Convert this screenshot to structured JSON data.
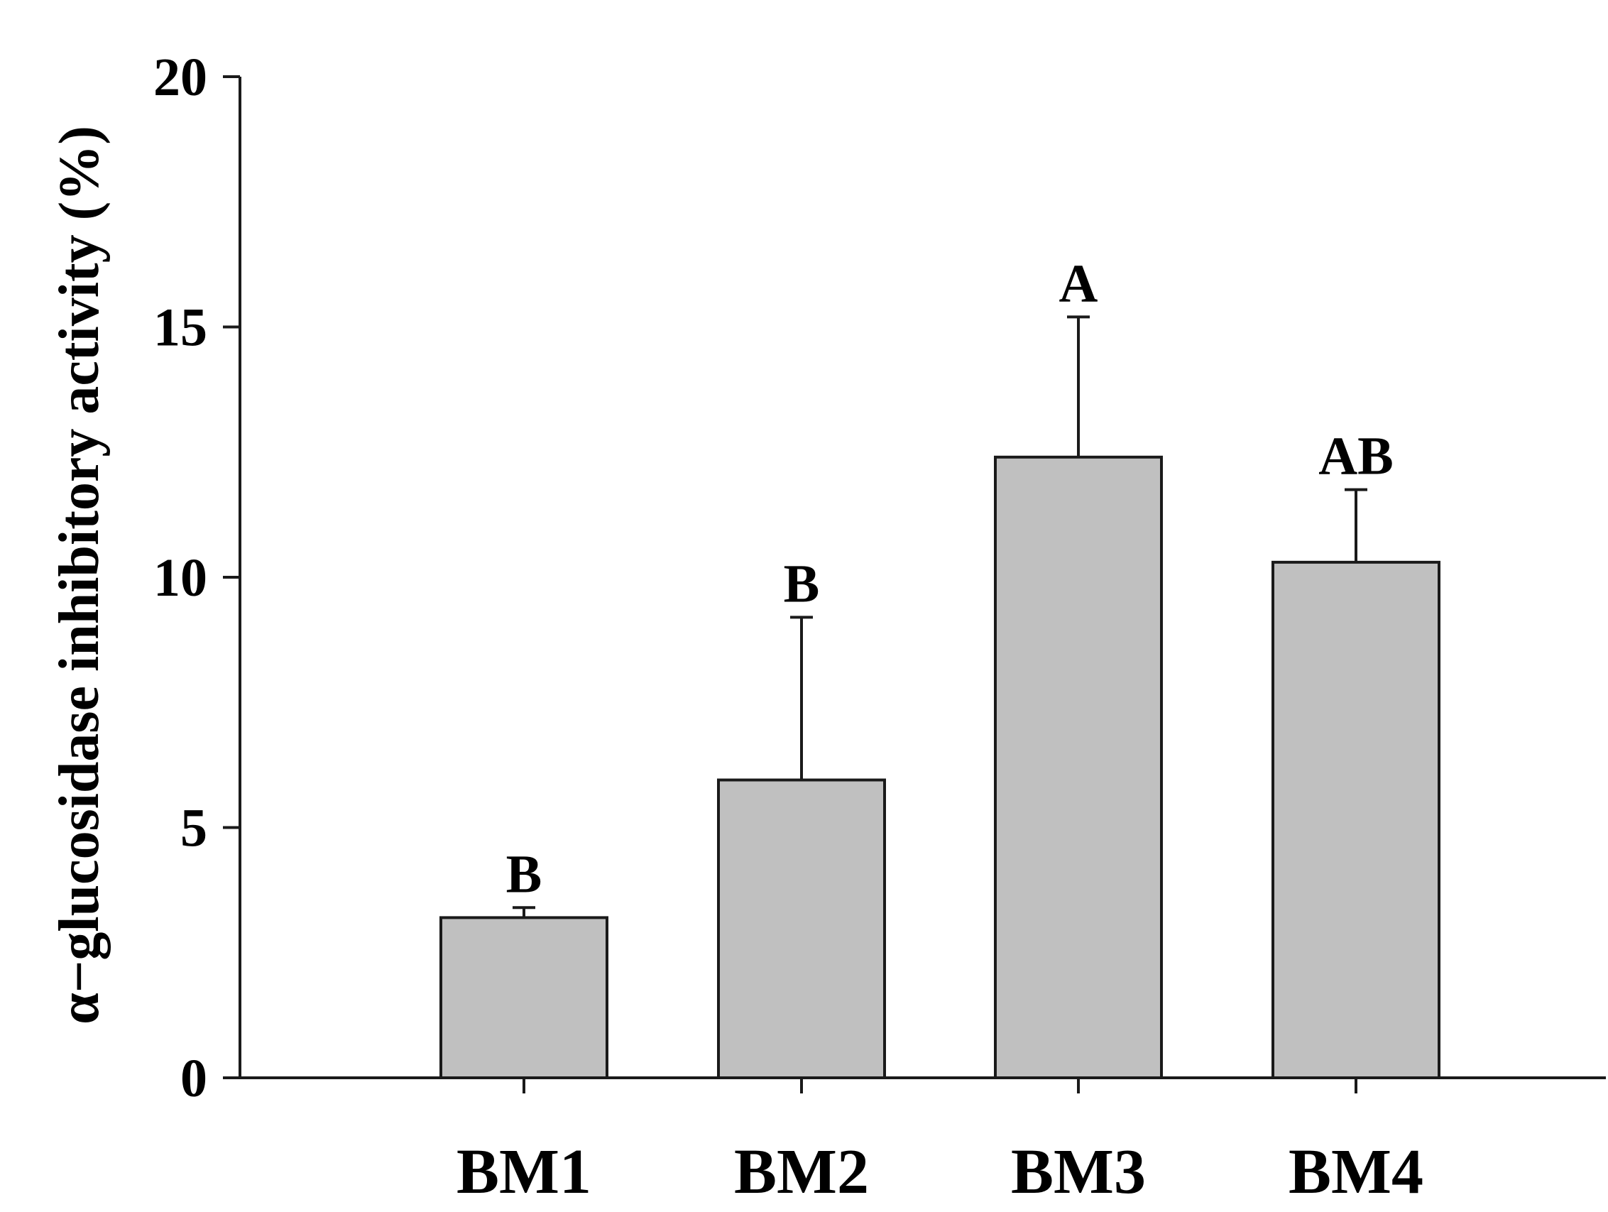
{
  "chart_data": {
    "type": "bar",
    "categories": [
      "BM1",
      "BM2",
      "BM3",
      "BM4"
    ],
    "values": [
      3.2,
      5.95,
      12.4,
      10.3
    ],
    "errors": [
      0.2,
      3.25,
      2.8,
      1.45
    ],
    "significance": [
      "B",
      "B",
      "A",
      "AB"
    ],
    "title": "",
    "xlabel": "",
    "ylabel": "α−glucosidase inhibitory activity (%)",
    "ylim": [
      0,
      20
    ],
    "yticks": [
      0,
      5,
      10,
      15,
      20
    ],
    "ytick_labels": [
      "0",
      "5",
      "10",
      "15",
      "20"
    ],
    "grid": false,
    "legend": "none",
    "bar_color": "#c0c0c0",
    "edge_color": "#1a1a1a"
  }
}
